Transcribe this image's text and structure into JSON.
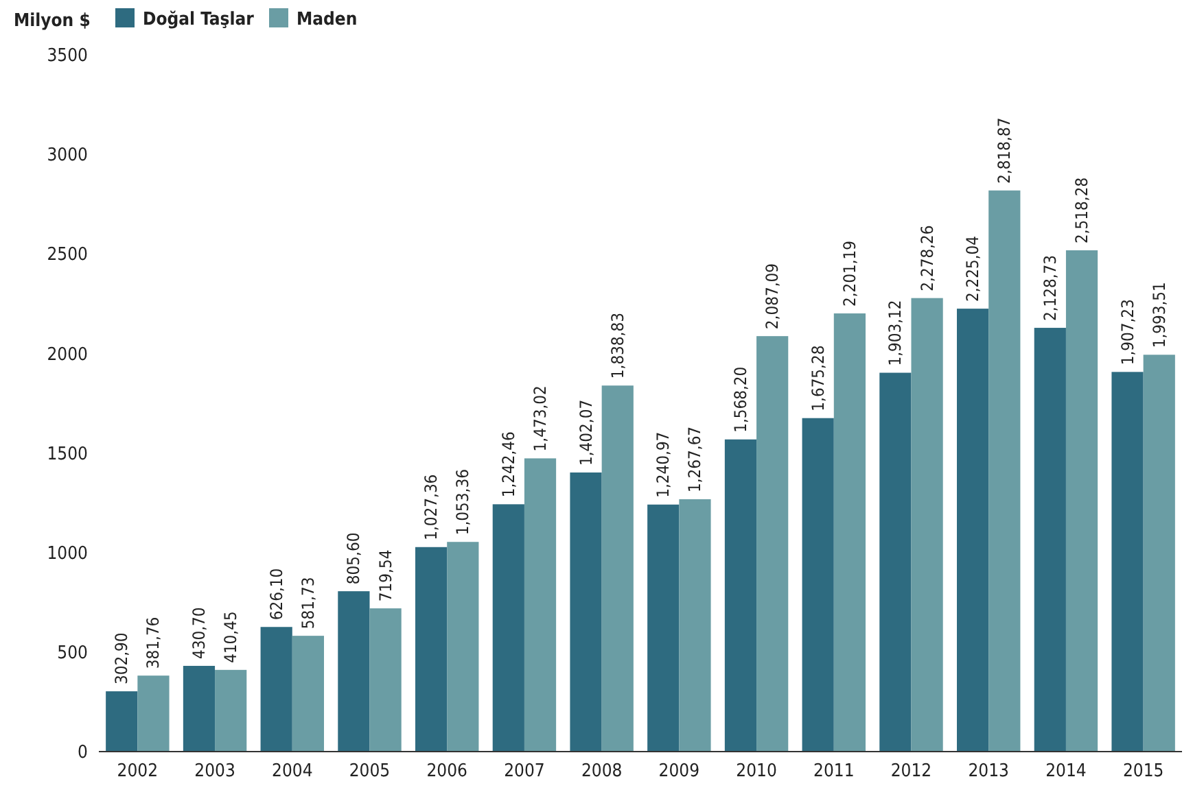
{
  "chart_data": {
    "type": "bar",
    "ylabel": "Milyon $",
    "categories": [
      "2002",
      "2003",
      "2004",
      "2005",
      "2006",
      "2007",
      "2008",
      "2009",
      "2010",
      "2011",
      "2012",
      "2013",
      "2014",
      "2015"
    ],
    "series": [
      {
        "name": "Doğal Taşlar",
        "color": "#2e6b80",
        "values": [
          302.9,
          430.7,
          626.1,
          805.6,
          1027.36,
          1242.46,
          1402.07,
          1240.97,
          1568.2,
          1675.28,
          1903.12,
          2225.04,
          2128.73,
          1907.23
        ],
        "value_labels": [
          "302,90",
          "430,70",
          "626,10",
          "805,60",
          "1,027,36",
          "1,242,46",
          "1,402,07",
          "1,240,97",
          "1,568,20",
          "1,675,28",
          "1,903,12",
          "2,225,04",
          "2,128,73",
          "1,907,23"
        ]
      },
      {
        "name": "Maden",
        "color": "#6a9da4",
        "values": [
          381.76,
          410.45,
          581.73,
          719.54,
          1053.36,
          1473.02,
          1838.83,
          1267.67,
          2087.09,
          2201.19,
          2278.26,
          2818.87,
          2518.28,
          1993.51
        ],
        "value_labels": [
          "381,76",
          "410,45",
          "581,73",
          "719,54",
          "1,053,36",
          "1,473,02",
          "1,838,83",
          "1,267,67",
          "2,087,09",
          "2,201,19",
          "2,278,26",
          "2,818,87",
          "2,518,28",
          "1,993,51"
        ]
      }
    ],
    "ylim": [
      0,
      3500
    ],
    "yticks": [
      0,
      500,
      1000,
      1500,
      2000,
      2500,
      3000,
      3500
    ],
    "grid": false,
    "legend": "top left"
  }
}
